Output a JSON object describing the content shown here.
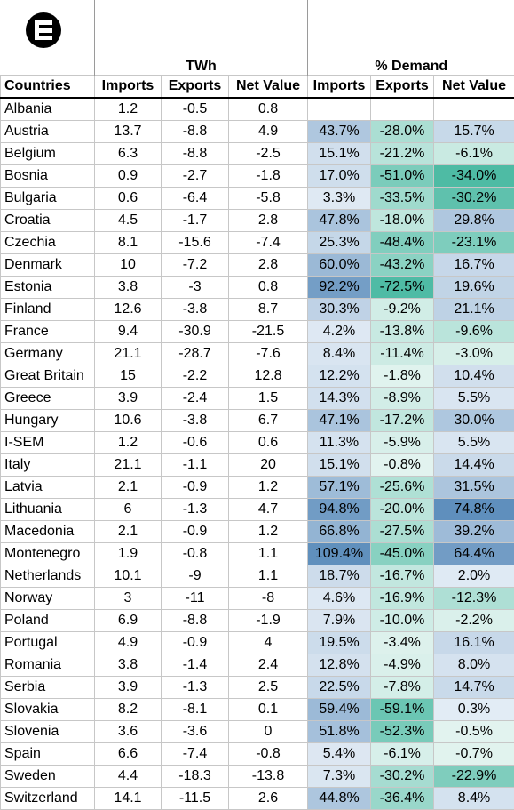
{
  "header": {
    "group_twh": "TWh",
    "group_pct": "% Demand",
    "columns": [
      "Countries",
      "Imports",
      "Exports",
      "Net Value",
      "Imports",
      "Exports",
      "Net Value"
    ]
  },
  "logo_icon": "e-letter-logo-icon",
  "colors": {
    "imports_scale": [
      "#e3ecf5",
      "#5f8fbd"
    ],
    "exports_scale": [
      "#e4f4f0",
      "#4ab9a2"
    ],
    "net_positive_scale": [
      "#e3ecf5",
      "#5f8fbd"
    ],
    "net_negative_scale": [
      "#e4f4f0",
      "#4ab9a2"
    ]
  },
  "rows": [
    {
      "country": "Albania",
      "imp": "1.2",
      "exp": "-0.5",
      "net": "0.8",
      "pimp": "",
      "pexp": "",
      "pnet": ""
    },
    {
      "country": "Austria",
      "imp": "13.7",
      "exp": "-8.8",
      "net": "4.9",
      "pimp": "43.7%",
      "pexp": "-28.0%",
      "pnet": "15.7%"
    },
    {
      "country": "Belgium",
      "imp": "6.3",
      "exp": "-8.8",
      "net": "-2.5",
      "pimp": "15.1%",
      "pexp": "-21.2%",
      "pnet": "-6.1%"
    },
    {
      "country": "Bosnia",
      "imp": "0.9",
      "exp": "-2.7",
      "net": "-1.8",
      "pimp": "17.0%",
      "pexp": "-51.0%",
      "pnet": "-34.0%"
    },
    {
      "country": "Bulgaria",
      "imp": "0.6",
      "exp": "-6.4",
      "net": "-5.8",
      "pimp": "3.3%",
      "pexp": "-33.5%",
      "pnet": "-30.2%"
    },
    {
      "country": "Croatia",
      "imp": "4.5",
      "exp": "-1.7",
      "net": "2.8",
      "pimp": "47.8%",
      "pexp": "-18.0%",
      "pnet": "29.8%"
    },
    {
      "country": "Czechia",
      "imp": "8.1",
      "exp": "-15.6",
      "net": "-7.4",
      "pimp": "25.3%",
      "pexp": "-48.4%",
      "pnet": "-23.1%"
    },
    {
      "country": "Denmark",
      "imp": "10",
      "exp": "-7.2",
      "net": "2.8",
      "pimp": "60.0%",
      "pexp": "-43.2%",
      "pnet": "16.7%"
    },
    {
      "country": "Estonia",
      "imp": "3.8",
      "exp": "-3",
      "net": "0.8",
      "pimp": "92.2%",
      "pexp": "-72.5%",
      "pnet": "19.6%"
    },
    {
      "country": "Finland",
      "imp": "12.6",
      "exp": "-3.8",
      "net": "8.7",
      "pimp": "30.3%",
      "pexp": "-9.2%",
      "pnet": "21.1%"
    },
    {
      "country": "France",
      "imp": "9.4",
      "exp": "-30.9",
      "net": "-21.5",
      "pimp": "4.2%",
      "pexp": "-13.8%",
      "pnet": "-9.6%"
    },
    {
      "country": "Germany",
      "imp": "21.1",
      "exp": "-28.7",
      "net": "-7.6",
      "pimp": "8.4%",
      "pexp": "-11.4%",
      "pnet": "-3.0%"
    },
    {
      "country": "Great Britain",
      "imp": "15",
      "exp": "-2.2",
      "net": "12.8",
      "pimp": "12.2%",
      "pexp": "-1.8%",
      "pnet": "10.4%"
    },
    {
      "country": "Greece",
      "imp": "3.9",
      "exp": "-2.4",
      "net": "1.5",
      "pimp": "14.3%",
      "pexp": "-8.9%",
      "pnet": "5.5%"
    },
    {
      "country": "Hungary",
      "imp": "10.6",
      "exp": "-3.8",
      "net": "6.7",
      "pimp": "47.1%",
      "pexp": "-17.2%",
      "pnet": "30.0%"
    },
    {
      "country": "I-SEM",
      "imp": "1.2",
      "exp": "-0.6",
      "net": "0.6",
      "pimp": "11.3%",
      "pexp": "-5.9%",
      "pnet": "5.5%"
    },
    {
      "country": "Italy",
      "imp": "21.1",
      "exp": "-1.1",
      "net": "20",
      "pimp": "15.1%",
      "pexp": "-0.8%",
      "pnet": "14.4%"
    },
    {
      "country": "Latvia",
      "imp": "2.1",
      "exp": "-0.9",
      "net": "1.2",
      "pimp": "57.1%",
      "pexp": "-25.6%",
      "pnet": "31.5%"
    },
    {
      "country": "Lithuania",
      "imp": "6",
      "exp": "-1.3",
      "net": "4.7",
      "pimp": "94.8%",
      "pexp": "-20.0%",
      "pnet": "74.8%"
    },
    {
      "country": "Macedonia",
      "imp": "2.1",
      "exp": "-0.9",
      "net": "1.2",
      "pimp": "66.8%",
      "pexp": "-27.5%",
      "pnet": "39.2%"
    },
    {
      "country": "Montenegro",
      "imp": "1.9",
      "exp": "-0.8",
      "net": "1.1",
      "pimp": "109.4%",
      "pexp": "-45.0%",
      "pnet": "64.4%"
    },
    {
      "country": "Netherlands",
      "imp": "10.1",
      "exp": "-9",
      "net": "1.1",
      "pimp": "18.7%",
      "pexp": "-16.7%",
      "pnet": "2.0%"
    },
    {
      "country": "Norway",
      "imp": "3",
      "exp": "-11",
      "net": "-8",
      "pimp": "4.6%",
      "pexp": "-16.9%",
      "pnet": "-12.3%"
    },
    {
      "country": "Poland",
      "imp": "6.9",
      "exp": "-8.8",
      "net": "-1.9",
      "pimp": "7.9%",
      "pexp": "-10.0%",
      "pnet": "-2.2%"
    },
    {
      "country": "Portugal",
      "imp": "4.9",
      "exp": "-0.9",
      "net": "4",
      "pimp": "19.5%",
      "pexp": "-3.4%",
      "pnet": "16.1%"
    },
    {
      "country": "Romania",
      "imp": "3.8",
      "exp": "-1.4",
      "net": "2.4",
      "pimp": "12.8%",
      "pexp": "-4.9%",
      "pnet": "8.0%"
    },
    {
      "country": "Serbia",
      "imp": "3.9",
      "exp": "-1.3",
      "net": "2.5",
      "pimp": "22.5%",
      "pexp": "-7.8%",
      "pnet": "14.7%"
    },
    {
      "country": "Slovakia",
      "imp": "8.2",
      "exp": "-8.1",
      "net": "0.1",
      "pimp": "59.4%",
      "pexp": "-59.1%",
      "pnet": "0.3%"
    },
    {
      "country": "Slovenia",
      "imp": "3.6",
      "exp": "-3.6",
      "net": "0",
      "pimp": "51.8%",
      "pexp": "-52.3%",
      "pnet": "-0.5%"
    },
    {
      "country": "Spain",
      "imp": "6.6",
      "exp": "-7.4",
      "net": "-0.8",
      "pimp": "5.4%",
      "pexp": "-6.1%",
      "pnet": "-0.7%"
    },
    {
      "country": "Sweden",
      "imp": "4.4",
      "exp": "-18.3",
      "net": "-13.8",
      "pimp": "7.3%",
      "pexp": "-30.2%",
      "pnet": "-22.9%"
    },
    {
      "country": "Switzerland",
      "imp": "14.1",
      "exp": "-11.5",
      "net": "2.6",
      "pimp": "44.8%",
      "pexp": "-36.4%",
      "pnet": "8.4%"
    }
  ]
}
